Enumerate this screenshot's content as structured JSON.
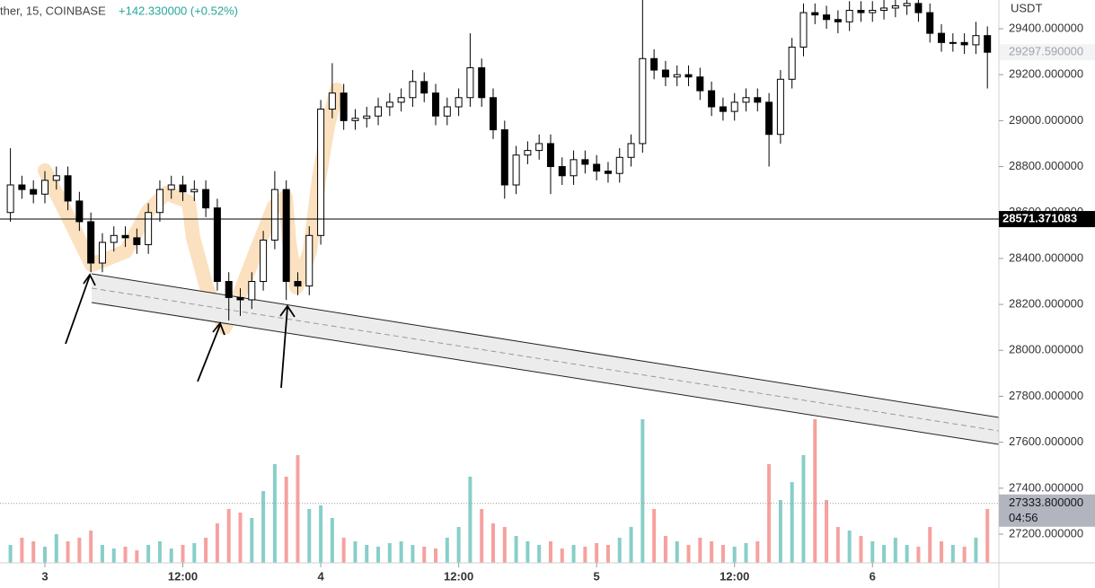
{
  "chart_data": {
    "type": "candlestick",
    "header": {
      "symbol": "ther, 15, COINBASE",
      "change": "+142.330000 (+0.52%)"
    },
    "currency": "USDT",
    "x": [
      -3,
      -2,
      -1,
      0,
      1,
      2,
      3,
      4,
      5,
      6,
      7,
      8,
      9,
      10,
      11,
      12,
      13,
      14,
      15,
      16,
      17,
      18,
      19,
      20,
      21,
      22,
      23,
      24,
      25,
      26,
      27,
      28,
      29,
      30,
      31,
      32,
      33,
      34,
      35,
      36,
      37,
      38,
      39,
      40,
      41,
      42,
      43,
      44,
      45,
      46,
      47,
      48,
      49,
      50,
      51,
      52,
      53,
      54,
      55,
      56,
      57,
      58,
      59,
      60,
      61,
      62,
      63,
      64,
      65,
      66,
      67,
      68,
      69,
      70,
      71,
      72,
      73,
      74,
      75,
      76,
      77,
      78,
      79,
      80,
      81,
      82
    ],
    "open": [
      28600,
      28720,
      28700,
      28680,
      28740,
      28760,
      28650,
      28560,
      28380,
      28470,
      28500,
      28490,
      28460,
      28600,
      28700,
      28720,
      28690,
      28700,
      28620,
      28300,
      28230,
      28220,
      28300,
      28480,
      28700,
      28300,
      28280,
      28500,
      29050,
      29120,
      29000,
      29010,
      29020,
      29060,
      29080,
      29100,
      29170,
      29120,
      29020,
      29060,
      29100,
      29230,
      29100,
      28960,
      28720,
      28850,
      28870,
      28900,
      28800,
      28760,
      28830,
      28810,
      28780,
      28770,
      28840,
      28900,
      29270,
      29220,
      29190,
      29200,
      29190,
      29130,
      29060,
      29040,
      29080,
      29100,
      29080,
      28940,
      29180,
      29320,
      29470,
      29460,
      29440,
      29430,
      29480,
      29470,
      29480,
      29490,
      29500,
      29510,
      29470,
      29380,
      29340,
      29340,
      29330,
      29370
    ],
    "high": [
      28880,
      28760,
      28740,
      28780,
      28800,
      28800,
      28690,
      28600,
      28510,
      28540,
      28540,
      28530,
      28640,
      28740,
      28760,
      28760,
      28740,
      28740,
      28660,
      28340,
      28270,
      28340,
      28520,
      28780,
      28740,
      28340,
      28540,
      29090,
      29250,
      29160,
      29050,
      29060,
      29100,
      29120,
      29140,
      29220,
      29210,
      29160,
      29100,
      29140,
      29380,
      29270,
      29140,
      29000,
      28890,
      28910,
      28940,
      28940,
      28840,
      28870,
      28870,
      28850,
      28820,
      28880,
      28940,
      29560,
      29310,
      29260,
      29240,
      29240,
      29230,
      29170,
      29100,
      29120,
      29140,
      29140,
      29120,
      29220,
      29360,
      29510,
      29510,
      29500,
      29480,
      29520,
      29520,
      29520,
      29530,
      29540,
      29550,
      29550,
      29510,
      29420,
      29380,
      29380,
      29430,
      29410
    ],
    "low": [
      28560,
      28660,
      28640,
      28640,
      28700,
      28610,
      28520,
      28340,
      28340,
      28430,
      28450,
      28420,
      28420,
      28560,
      28660,
      28650,
      28650,
      28580,
      28260,
      28130,
      28150,
      28180,
      28260,
      28440,
      28220,
      28240,
      28240,
      28460,
      29010,
      28960,
      28960,
      28970,
      28980,
      29020,
      29040,
      29060,
      29080,
      28980,
      28980,
      29020,
      29060,
      29060,
      28920,
      28660,
      28680,
      28810,
      28830,
      28680,
      28720,
      28720,
      28770,
      28740,
      28730,
      28730,
      28800,
      28860,
      29180,
      29150,
      29150,
      29150,
      29090,
      29020,
      29000,
      29000,
      29040,
      29040,
      28800,
      28900,
      29140,
      29280,
      29420,
      29400,
      29380,
      29390,
      29430,
      29430,
      29440,
      29450,
      29460,
      29430,
      29340,
      29300,
      29300,
      29290,
      29290,
      29140
    ],
    "close": [
      28720,
      28700,
      28680,
      28740,
      28760,
      28650,
      28560,
      28380,
      28470,
      28500,
      28490,
      28460,
      28600,
      28700,
      28720,
      28690,
      28700,
      28620,
      28300,
      28230,
      28220,
      28300,
      28480,
      28700,
      28300,
      28280,
      28500,
      29050,
      29120,
      29000,
      29010,
      29020,
      29060,
      29080,
      29100,
      29170,
      29120,
      29020,
      29060,
      29100,
      29230,
      29100,
      28960,
      28720,
      28850,
      28870,
      28900,
      28800,
      28760,
      28830,
      28810,
      28780,
      28770,
      28840,
      28900,
      29270,
      29220,
      29190,
      29200,
      29190,
      29130,
      29060,
      29040,
      29080,
      29100,
      29080,
      28940,
      29180,
      29320,
      29470,
      29460,
      29440,
      29430,
      29480,
      29470,
      29480,
      29490,
      29500,
      29510,
      29470,
      29380,
      29340,
      29340,
      29330,
      29370,
      29297.59
    ],
    "volume": [
      10,
      14,
      12,
      9,
      16,
      12,
      14,
      18,
      10,
      8,
      9,
      7,
      10,
      12,
      8,
      10,
      11,
      14,
      22,
      30,
      28,
      25,
      40,
      55,
      48,
      60,
      30,
      32,
      25,
      14,
      12,
      10,
      9,
      11,
      12,
      10,
      9,
      8,
      14,
      20,
      48,
      30,
      22,
      20,
      15,
      12,
      10,
      12,
      8,
      10,
      9,
      11,
      10,
      14,
      20,
      80,
      30,
      15,
      12,
      10,
      14,
      12,
      10,
      9,
      11,
      12,
      55,
      35,
      45,
      60,
      80,
      35,
      20,
      18,
      15,
      12,
      10,
      14,
      10,
      9,
      20,
      12,
      10,
      9,
      14,
      30
    ],
    "colors": {
      "up": "#ffffff",
      "down": "#000000",
      "volume_up": "#26a69a",
      "volume_down": "#ef5350"
    },
    "xlim": [
      -3.90625,
      83
    ],
    "xticks": [
      {
        "value": 0,
        "label": "3"
      },
      {
        "value": 12,
        "label": "12:00"
      },
      {
        "value": 24,
        "label": "4"
      },
      {
        "value": 36,
        "label": "12:00"
      },
      {
        "value": 48,
        "label": "5"
      },
      {
        "value": 60,
        "label": "12:00"
      },
      {
        "value": 72,
        "label": "6"
      }
    ],
    "ylim": [
      27075,
      29525
    ],
    "yticks": [
      {
        "value": 27200,
        "label": "27200.000000"
      },
      {
        "value": 27400,
        "label": "27400.000000"
      },
      {
        "value": 27600,
        "label": "27600.000000"
      },
      {
        "value": 27800,
        "label": "27800.000000"
      },
      {
        "value": 28000,
        "label": "28000.000000"
      },
      {
        "value": 28200,
        "label": "28200.000000"
      },
      {
        "value": 28400,
        "label": "28400.000000"
      },
      {
        "value": 28600,
        "label": "28600.000000"
      },
      {
        "value": 28800,
        "label": "28800.000000"
      },
      {
        "value": 29000,
        "label": "29000.000000"
      },
      {
        "value": 29200,
        "label": "29200.000000"
      },
      {
        "value": 29400,
        "label": "29400.000000"
      }
    ],
    "last_price": {
      "value": 29297.59,
      "label": "29297.590000"
    },
    "current_price": {
      "value": 28571.371083,
      "label": "28571.371083"
    },
    "volume_line": {
      "value": 27333.8,
      "label": "27333.800000"
    },
    "countdown": "04:56"
  }
}
